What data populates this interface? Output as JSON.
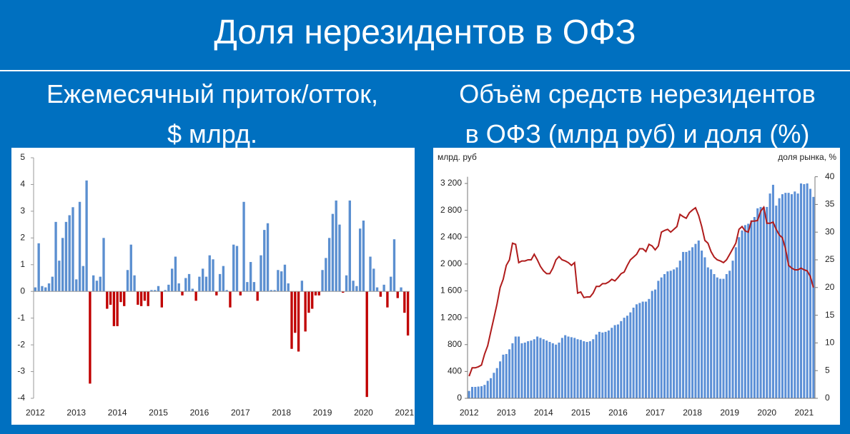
{
  "header": {
    "title": "Доля нерезидентов в ОФЗ"
  },
  "chart_data": [
    {
      "type": "bar",
      "title": [
        "Ежемесячный приток/отток,",
        "$ млрд."
      ],
      "categories": [
        "2012",
        null,
        null,
        null,
        null,
        null,
        null,
        null,
        null,
        null,
        null,
        null,
        "2013",
        null,
        null,
        null,
        null,
        null,
        null,
        null,
        null,
        null,
        null,
        null,
        "2014",
        null,
        null,
        null,
        null,
        null,
        null,
        null,
        null,
        null,
        null,
        null,
        "2015",
        null,
        null,
        null,
        null,
        null,
        null,
        null,
        null,
        null,
        null,
        null,
        "2016",
        null,
        null,
        null,
        null,
        null,
        null,
        null,
        null,
        null,
        null,
        null,
        "2017",
        null,
        null,
        null,
        null,
        null,
        null,
        null,
        null,
        null,
        null,
        null,
        "2018",
        null,
        null,
        null,
        null,
        null,
        null,
        null,
        null,
        null,
        null,
        null,
        "2019",
        null,
        null,
        null,
        null,
        null,
        null,
        null,
        null,
        null,
        null,
        null,
        "2020",
        null,
        null,
        null,
        null,
        null,
        null,
        null,
        null,
        null,
        null,
        null,
        "2021",
        null
      ],
      "values": [
        0.15,
        1.8,
        0.2,
        0.15,
        0.3,
        0.55,
        2.6,
        1.15,
        2.0,
        2.6,
        2.85,
        3.15,
        0.45,
        3.35,
        0.95,
        4.15,
        -3.45,
        0.6,
        0.4,
        0.55,
        2.0,
        -0.65,
        -0.5,
        -1.3,
        -1.3,
        -0.4,
        -0.55,
        0.8,
        1.75,
        0.6,
        -0.5,
        -0.55,
        -0.35,
        -0.55,
        0.05,
        0.05,
        0.2,
        -0.6,
        0.05,
        0.25,
        0.85,
        1.3,
        0.3,
        -0.15,
        0.5,
        0.65,
        0.1,
        -0.35,
        0.55,
        0.85,
        0.55,
        1.35,
        1.2,
        -0.15,
        0.65,
        0.95,
        0.05,
        -0.6,
        1.75,
        1.7,
        -0.15,
        3.35,
        0.35,
        1.1,
        0.35,
        -0.35,
        1.35,
        2.3,
        2.55,
        0.05,
        0.05,
        0.8,
        0.75,
        1.0,
        0.3,
        -2.15,
        -1.55,
        -2.25,
        0.4,
        -1.5,
        -0.8,
        -0.65,
        -0.15,
        -0.15,
        0.8,
        1.25,
        2.0,
        2.9,
        3.4,
        2.5,
        -0.05,
        0.6,
        3.4,
        0.4,
        0.2,
        2.35,
        2.65,
        -3.95,
        1.3,
        0.85,
        0.15,
        -0.2,
        0.25,
        -0.6,
        0.55,
        1.95,
        -0.25,
        0.15,
        -0.8,
        -1.65
      ],
      "color": "#5b8fd0",
      "negative_color": "#c00000",
      "ylim": [
        -4,
        5
      ],
      "yticks": [
        -4,
        -3,
        -2,
        -1,
        0,
        1,
        2,
        3,
        4,
        5
      ],
      "grid": false
    },
    {
      "type": "combo",
      "title": [
        "Объём средств нерезидентов",
        "в ОФЗ (млрд руб) и доля (%)"
      ],
      "ylabel": "млрд. руб",
      "y2label": "доля рынка, %",
      "categories": [
        "2012",
        null,
        null,
        null,
        null,
        null,
        null,
        null,
        null,
        null,
        null,
        null,
        "2013",
        null,
        null,
        null,
        null,
        null,
        null,
        null,
        null,
        null,
        null,
        null,
        "2014",
        null,
        null,
        null,
        null,
        null,
        null,
        null,
        null,
        null,
        null,
        null,
        "2015",
        null,
        null,
        null,
        null,
        null,
        null,
        null,
        null,
        null,
        null,
        null,
        "2016",
        null,
        null,
        null,
        null,
        null,
        null,
        null,
        null,
        null,
        null,
        null,
        "2017",
        null,
        null,
        null,
        null,
        null,
        null,
        null,
        null,
        null,
        null,
        null,
        "2018",
        null,
        null,
        null,
        null,
        null,
        null,
        null,
        null,
        null,
        null,
        null,
        "2019",
        null,
        null,
        null,
        null,
        null,
        null,
        null,
        null,
        null,
        null,
        null,
        "2020",
        null,
        null,
        null,
        null,
        null,
        null,
        null,
        null,
        null,
        null,
        null,
        "2021",
        null,
        null,
        null
      ],
      "series": [
        {
          "type": "bar",
          "color": "#5b8fd6",
          "values": [
            110,
            170,
            170,
            175,
            180,
            200,
            260,
            300,
            380,
            450,
            550,
            650,
            660,
            730,
            820,
            920,
            920,
            820,
            830,
            850,
            860,
            880,
            920,
            900,
            880,
            860,
            840,
            820,
            800,
            830,
            900,
            940,
            920,
            910,
            900,
            880,
            870,
            850,
            840,
            850,
            880,
            950,
            990,
            980,
            990,
            1010,
            1050,
            1090,
            1100,
            1150,
            1200,
            1230,
            1280,
            1350,
            1400,
            1420,
            1440,
            1440,
            1480,
            1600,
            1620,
            1750,
            1800,
            1850,
            1890,
            1900,
            1920,
            1950,
            2050,
            2180,
            2180,
            2200,
            2250,
            2300,
            2350,
            2200,
            2100,
            1950,
            1920,
            1850,
            1800,
            1780,
            1780,
            1850,
            1900,
            2050,
            2250,
            2400,
            2500,
            2580,
            2600,
            2650,
            2700,
            2830,
            2850,
            2850,
            2850,
            3050,
            3180,
            2870,
            2980,
            3040,
            3060,
            3060,
            3040,
            3080,
            3050,
            3200,
            3190,
            3200,
            3120,
            3000
          ]
        },
        {
          "type": "line",
          "axis": "y2",
          "color": "#b01c1c",
          "values": [
            4,
            5.5,
            5.5,
            5.7,
            6,
            8,
            9.5,
            12,
            14.5,
            17,
            20,
            21.5,
            24,
            25,
            28,
            27.8,
            24.5,
            24.8,
            24.8,
            25,
            25,
            26,
            25,
            23.8,
            23,
            22.5,
            22.5,
            23.5,
            25,
            25.6,
            25,
            24.8,
            24.5,
            24,
            24.5,
            19,
            19.2,
            18.2,
            18.3,
            18.3,
            19,
            20.2,
            20.2,
            20.7,
            20.7,
            21,
            21.5,
            21.2,
            21.8,
            22.5,
            22.8,
            24,
            25,
            25.5,
            26,
            27,
            27,
            26.5,
            27.8,
            27.5,
            26.8,
            27.5,
            30,
            30.3,
            30.5,
            30,
            30.5,
            31,
            33.2,
            32.8,
            32.5,
            33.5,
            34,
            34.4,
            33,
            31,
            28.5,
            28,
            26.5,
            25.5,
            25,
            24.8,
            24.5,
            25,
            26,
            27,
            28,
            30.5,
            31,
            30.2,
            30,
            32,
            32,
            32.1,
            33.8,
            34.5,
            31.6,
            31.6,
            31.8,
            30.5,
            29.5,
            29,
            27,
            24,
            23.5,
            23.2,
            23.2,
            23.5,
            23.2,
            23,
            22,
            20
          ]
        }
      ],
      "ylim": [
        0,
        3300
      ],
      "yticks": [
        0,
        400,
        800,
        {
          "value": 1200,
          "label": "1 200"
        },
        {
          "value": 1600,
          "label": "1 600"
        },
        {
          "value": 2000,
          "label": "2 000"
        },
        {
          "value": 2400,
          "label": "2 400"
        },
        {
          "value": 2800,
          "label": "2 800"
        },
        {
          "value": 3200,
          "label": "3 200"
        }
      ],
      "y2lim": [
        0,
        40
      ],
      "y2ticks": [
        0,
        5,
        10,
        15,
        20,
        25,
        30,
        35,
        40
      ],
      "grid": false
    }
  ]
}
